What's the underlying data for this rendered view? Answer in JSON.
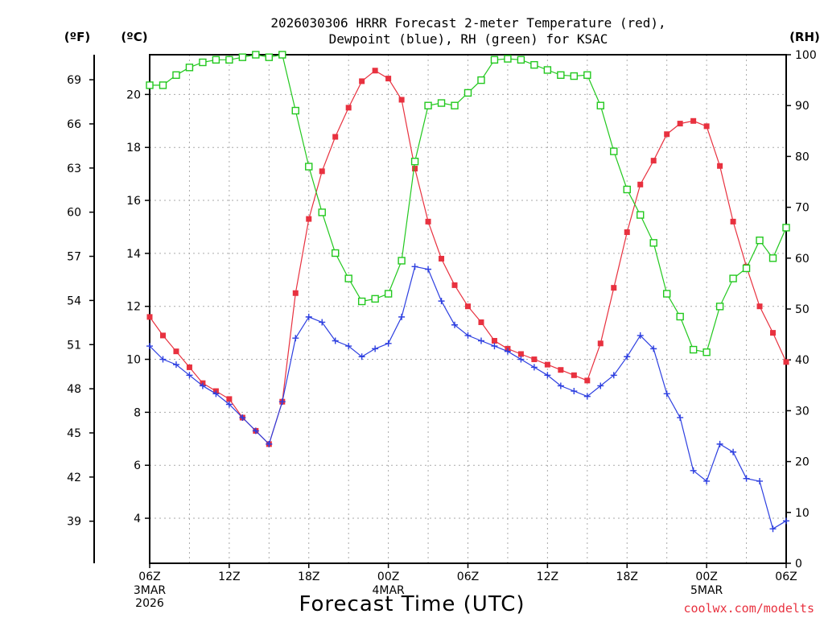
{
  "chart_data": {
    "type": "line",
    "title_line1": "2026030306 HRRR Forecast 2-meter Temperature (red),",
    "title_line2": "Dewpoint (blue), RH (green) for KSAC",
    "unit_f": "(ºF)",
    "unit_c": "(ºC)",
    "unit_rh": "(RH)",
    "xlabel": "Forecast Time (UTC)",
    "credit": "coolwx.com/modelts",
    "x_range_hours": [
      0,
      48
    ],
    "ylim_c": [
      2.3,
      21.5
    ],
    "ylim_rh": [
      0,
      100
    ],
    "x_ticks": [
      {
        "hour": 0,
        "label": "06Z",
        "sub1": "3MAR",
        "sub2": "2026"
      },
      {
        "hour": 6,
        "label": "12Z"
      },
      {
        "hour": 12,
        "label": "18Z"
      },
      {
        "hour": 18,
        "label": "00Z",
        "sub1": "4MAR"
      },
      {
        "hour": 24,
        "label": "06Z"
      },
      {
        "hour": 30,
        "label": "12Z"
      },
      {
        "hour": 36,
        "label": "18Z"
      },
      {
        "hour": 42,
        "label": "00Z",
        "sub1": "5MAR"
      },
      {
        "hour": 48,
        "label": "06Z"
      }
    ],
    "y_ticks_c": [
      "4",
      "6",
      "8",
      "10",
      "12",
      "14",
      "16",
      "18",
      "20"
    ],
    "y_ticks_f": [
      "39",
      "42",
      "45",
      "48",
      "51",
      "54",
      "57",
      "60",
      "63",
      "66",
      "69"
    ],
    "y_ticks_rh": [
      "0",
      "10",
      "20",
      "30",
      "40",
      "50",
      "60",
      "70",
      "80",
      "90",
      "100"
    ],
    "series": [
      {
        "name": "Temperature",
        "color": "#e8313f",
        "marker": "filled-square",
        "values": [
          11.6,
          10.9,
          10.3,
          9.7,
          9.1,
          8.8,
          8.5,
          7.8,
          7.3,
          6.8,
          8.4,
          12.5,
          15.3,
          17.1,
          18.4,
          19.5,
          20.5,
          20.9,
          20.6,
          19.8,
          17.2,
          15.2,
          13.8,
          12.8,
          12.0,
          11.4,
          10.7,
          10.4,
          10.2,
          10.0,
          9.8,
          9.6,
          9.4,
          9.2,
          10.6,
          12.7,
          14.8,
          16.6,
          17.5,
          18.5,
          18.9,
          19.0,
          18.8,
          17.3,
          15.2,
          13.5,
          12.0,
          11.0,
          9.9
        ]
      },
      {
        "name": "Dewpoint",
        "color": "#2d3fe0",
        "marker": "plus",
        "values": [
          10.5,
          10.0,
          9.8,
          9.4,
          9.0,
          8.7,
          8.3,
          7.8,
          7.3,
          6.8,
          8.4,
          10.8,
          11.6,
          11.4,
          10.7,
          10.5,
          10.1,
          10.4,
          10.6,
          11.6,
          13.5,
          13.4,
          12.2,
          11.3,
          10.9,
          10.7,
          10.5,
          10.3,
          10.0,
          9.7,
          9.4,
          9.0,
          8.8,
          8.6,
          9.0,
          9.4,
          10.1,
          10.9,
          10.4,
          8.7,
          7.8,
          5.8,
          5.4,
          6.8,
          6.5,
          5.5,
          5.4,
          3.6,
          3.9
        ]
      },
      {
        "name": "Relative Humidity",
        "color": "#22c81e",
        "marker": "open-square",
        "values": [
          94,
          94,
          96,
          97.5,
          98.5,
          99,
          99,
          99.5,
          100,
          99.5,
          100,
          89,
          78,
          69,
          61,
          56,
          51.5,
          52,
          53,
          59.5,
          79,
          90,
          90.5,
          90,
          92.5,
          95,
          99,
          99.2,
          99,
          98,
          97,
          96,
          95.8,
          96,
          90,
          81,
          73.5,
          68.5,
          63,
          53,
          48.5,
          42,
          41.5,
          50.5,
          56,
          58,
          63.5,
          60,
          66
        ]
      }
    ]
  }
}
